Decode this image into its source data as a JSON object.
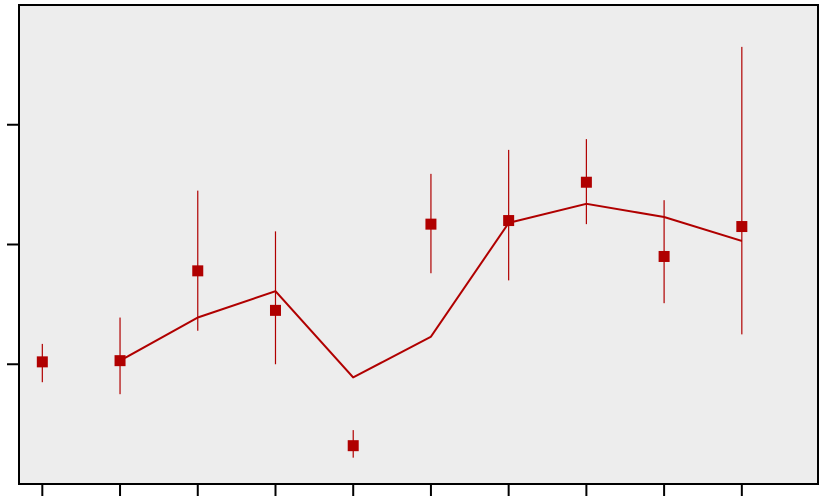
{
  "chart_data": {
    "type": "scatter",
    "title": "",
    "xlabel": "",
    "ylabel": "",
    "x": [
      1,
      2,
      3,
      4,
      5,
      6,
      7,
      8,
      9,
      10
    ],
    "xlim": [
      0.7,
      10.98
    ],
    "ylim": [
      -1.0,
      3.0
    ],
    "y_ticks": [
      0,
      1,
      2
    ],
    "grid": false,
    "legend": "none",
    "colors": {
      "plot_background": "#ededed",
      "series": "#b00000",
      "axis": "#000000"
    },
    "series": [
      {
        "mark": "square",
        "values": [
          0.02,
          0.03,
          0.78,
          0.45,
          -0.68,
          1.17,
          1.2,
          1.52,
          0.9,
          1.15
        ],
        "error_low": [
          -0.15,
          -0.25,
          0.28,
          0.0,
          -0.78,
          0.76,
          0.7,
          1.17,
          0.51,
          0.25
        ],
        "error_high": [
          0.17,
          0.39,
          1.45,
          1.11,
          -0.55,
          1.59,
          1.79,
          1.88,
          1.37,
          2.65
        ]
      },
      {
        "mark": "line",
        "values": [
          null,
          0.03,
          0.39,
          0.61,
          -0.11,
          0.23,
          1.18,
          1.34,
          1.23,
          1.03
        ]
      }
    ]
  }
}
